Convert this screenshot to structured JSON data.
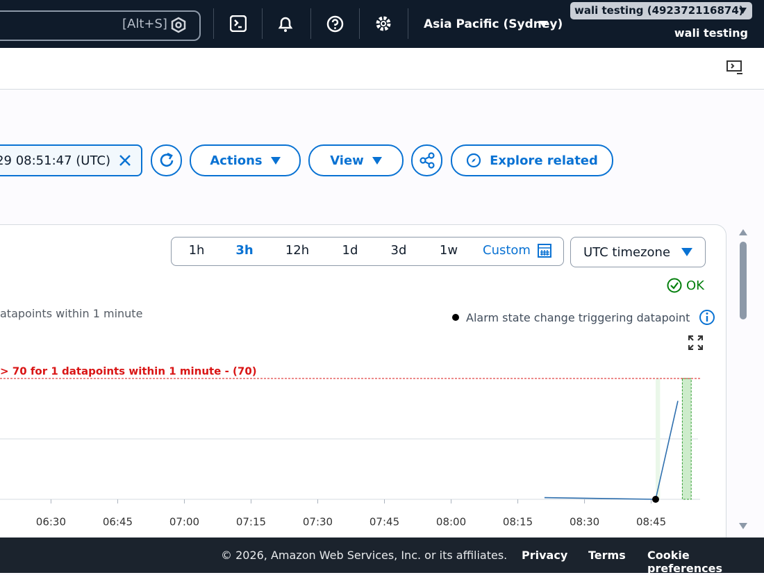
{
  "header": {
    "search_shortcut": "[Alt+S]",
    "region": "Asia Pacific (Sydney)",
    "account": "wali testing (492372116874)",
    "user": "wali testing"
  },
  "toolbar": {
    "time_range": "29 08:51:47 (UTC)",
    "actions": "Actions",
    "view": "View",
    "explore": "Explore related"
  },
  "graph_panel": {
    "ranges": [
      "1h",
      "3h",
      "12h",
      "1d",
      "3d",
      "1w"
    ],
    "selected_range": 1,
    "custom": "Custom",
    "timezone": "UTC timezone",
    "state": "OK",
    "description": "atapoints within 1 minute",
    "legend": "Alarm state change triggering datapoint"
  },
  "chart_data": {
    "type": "line",
    "x": [
      "08:21",
      "08:46",
      "08:51"
    ],
    "values": [
      1,
      0,
      57
    ],
    "color": "#2e6fae",
    "trigger_index": 1,
    "xlim": [
      "06:19",
      "08:56"
    ],
    "xticks": [
      "06:30",
      "06:45",
      "07:00",
      "07:15",
      "07:30",
      "07:45",
      "08:00",
      "08:15",
      "08:30",
      "08:45"
    ],
    "ylim": [
      0,
      70
    ],
    "threshold": 70,
    "threshold_label": "> 70 for 1 datapoints within 1 minute - (70)",
    "threshold_color": "#d91515",
    "alarm_bands": [
      [
        "08:46",
        "08:47"
      ],
      [
        "08:52",
        "08:54"
      ]
    ]
  },
  "footer": {
    "copyright": "© 2026, Amazon Web Services, Inc. or its affiliates.",
    "links": [
      "Privacy",
      "Terms",
      "Cookie preferences"
    ]
  }
}
